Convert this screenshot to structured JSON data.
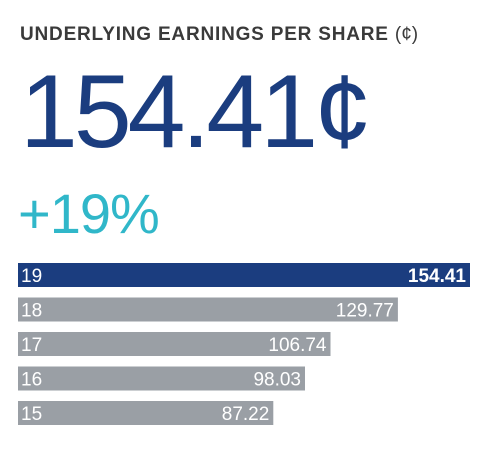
{
  "title": "UNDERLYING EARNINGS PER SHARE",
  "title_unit": "(¢)",
  "headline_value": "154.41¢",
  "headline_change": "+19%",
  "colors": {
    "highlight_bar": "#1b3d7f",
    "bar": "#9a9fa5",
    "headline": "#1b3d7f",
    "change": "#30b7c9"
  },
  "chart_data": {
    "type": "bar",
    "orientation": "horizontal",
    "categories": [
      "19",
      "18",
      "17",
      "16",
      "15"
    ],
    "values": [
      154.41,
      129.77,
      106.74,
      98.03,
      87.22
    ],
    "value_labels": [
      "154.41",
      "129.77",
      "106.74",
      "98.03",
      "87.22"
    ],
    "highlight_index": 0,
    "title": "UNDERLYING EARNINGS PER SHARE (¢)",
    "xlabel": "",
    "ylabel": "",
    "grid": false,
    "legend": "none"
  }
}
